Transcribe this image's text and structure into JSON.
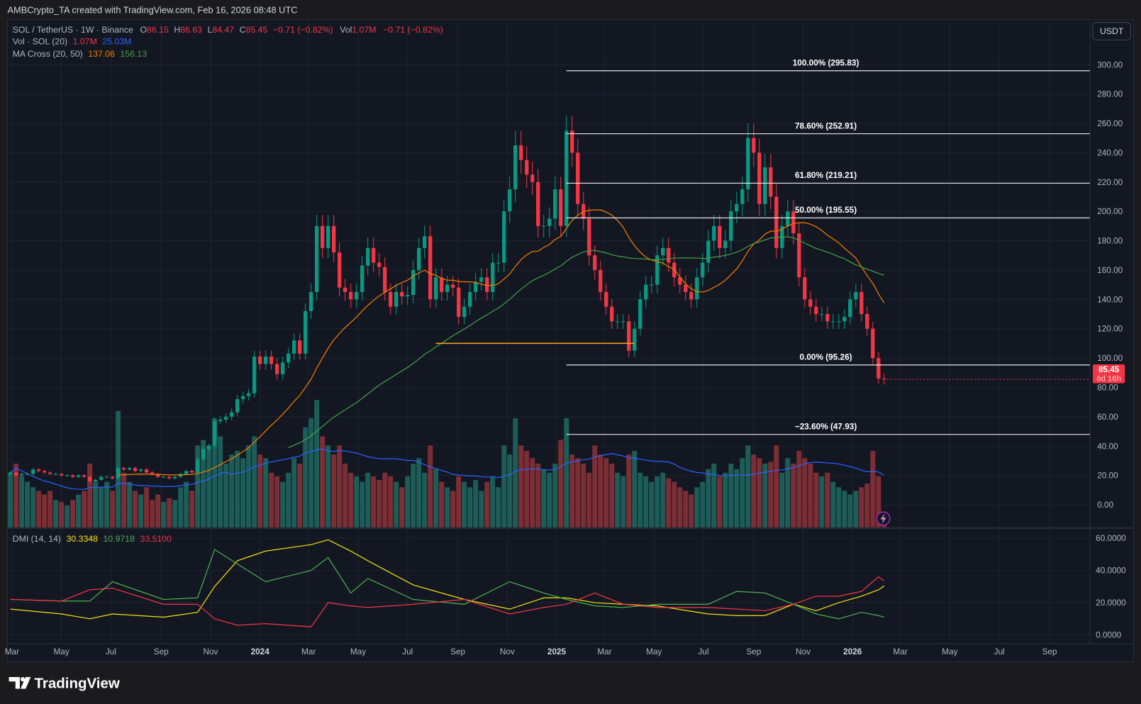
{
  "attribution": "AMBCrypto_TA created with TradingView.com, Feb 16, 2026 08:48 UTC",
  "footer_logo": "TradingView",
  "currency_button": "USDT",
  "legend": {
    "symbol": "SOL / TetherUS · 1W · Binance",
    "o_label": "O",
    "o": "86.15",
    "h_label": "H",
    "h": "86.63",
    "l_label": "L",
    "l": "84.47",
    "c_label": "C",
    "c": "85.45",
    "change": "−0.71 (−0.82%)",
    "vol_label": "Vol",
    "vol": "1.07M",
    "change2": "−0.71 (−0.82%)",
    "volume_name": "Vol · SOL (20)",
    "volume_value": "1.07M",
    "volume_ma": "25.03M",
    "ma_name": "MA Cross (20, 50)",
    "ma_fast": "137.06",
    "ma_slow": "156.13",
    "dmi_name": "DMI (14, 14)",
    "dmi_adx": "30.3348",
    "dmi_plus": "10.9718",
    "dmi_minus": "33.5100"
  },
  "last_price": {
    "value": "85.45",
    "countdown": "6d 16h"
  },
  "colors": {
    "up": "#089981",
    "down": "#f23645",
    "ma_fast": "#f57c00",
    "ma_slow": "#43a047",
    "vol_ma": "#2962ff",
    "adx": "#f4e012",
    "plus_di": "#4caf50",
    "minus_di": "#f23645",
    "support": "#f59d1b",
    "background": "#131722"
  },
  "chart_data": [
    {
      "type": "candlestick",
      "interval": "1W",
      "first_week": "2023-02-27",
      "closes": [
        22,
        20,
        21,
        21,
        24,
        23,
        22,
        21,
        21,
        20,
        20,
        19,
        20,
        19,
        16,
        17,
        19,
        19,
        18,
        25,
        24,
        25,
        23,
        24,
        22,
        21,
        19,
        19,
        18,
        19,
        21,
        23,
        22,
        31,
        38,
        40,
        57,
        58,
        60,
        63,
        72,
        74,
        76,
        101,
        96,
        101,
        96,
        89,
        97,
        103,
        112,
        103,
        132,
        145,
        190,
        175,
        190,
        172,
        148,
        145,
        140,
        145,
        163,
        175,
        165,
        162,
        145,
        135,
        145,
        142,
        143,
        160,
        175,
        183,
        140,
        155,
        145,
        150,
        148,
        128,
        135,
        145,
        152,
        155,
        145,
        165,
        165,
        200,
        215,
        245,
        235,
        225,
        220,
        190,
        190,
        195,
        215,
        190,
        255,
        240,
        205,
        195,
        170,
        160,
        145,
        135,
        125,
        125,
        125,
        105,
        120,
        140,
        150,
        150,
        170,
        175,
        165,
        155,
        150,
        145,
        140,
        155,
        165,
        180,
        190,
        175,
        180,
        200,
        205,
        215,
        250,
        240,
        205,
        230,
        210,
        175,
        190,
        200,
        185,
        155,
        140,
        135,
        130,
        130,
        125,
        125,
        125,
        128,
        140,
        145,
        130,
        120,
        100,
        86,
        85.45
      ],
      "first_open": 21,
      "volume_millions": [
        30,
        35,
        28,
        25,
        22,
        20,
        18,
        20,
        15,
        14,
        12,
        15,
        18,
        20,
        35,
        25,
        22,
        25,
        20,
        64,
        30,
        25,
        20,
        18,
        22,
        15,
        18,
        14,
        16,
        15,
        22,
        25,
        20,
        45,
        48,
        45,
        60,
        50,
        35,
        40,
        42,
        38,
        45,
        50,
        40,
        38,
        30,
        28,
        25,
        30,
        38,
        35,
        55,
        60,
        70,
        50,
        45,
        40,
        45,
        35,
        30,
        28,
        25,
        30,
        28,
        26,
        30,
        28,
        25,
        22,
        28,
        35,
        38,
        30,
        45,
        32,
        25,
        22,
        20,
        28,
        25,
        22,
        26,
        20,
        25,
        28,
        22,
        45,
        40,
        60,
        45,
        42,
        38,
        35,
        32,
        30,
        35,
        48,
        60,
        40,
        38,
        35,
        30,
        45,
        40,
        38,
        35,
        30,
        28,
        40,
        42,
        30,
        28,
        25,
        28,
        30,
        27,
        25,
        22,
        20,
        18,
        22,
        25,
        32,
        35,
        28,
        30,
        35,
        32,
        38,
        45,
        40,
        38,
        35,
        36,
        45,
        30,
        38,
        35,
        42,
        38,
        35,
        30,
        28,
        30,
        25,
        22,
        20,
        18,
        20,
        22,
        24,
        42,
        28,
        1.07
      ],
      "moving_averages": [
        20,
        50
      ],
      "price_axis": {
        "min": 0,
        "max": 300,
        "ticks": [
          "300.00",
          "280.00",
          "260.00",
          "240.00",
          "220.00",
          "200.00",
          "180.00",
          "160.00",
          "140.00",
          "120.00",
          "100.00",
          "80.00",
          "60.00",
          "40.00",
          "20.00",
          "0.00"
        ]
      },
      "fibonacci": [
        {
          "label": "100.00% (295.83)",
          "price": 295.83
        },
        {
          "label": "78.60% (252.91)",
          "price": 252.91
        },
        {
          "label": "61.80% (219.21)",
          "price": 219.21
        },
        {
          "label": "50.00% (195.55)",
          "price": 195.55
        },
        {
          "label": "0.00% (95.26)",
          "price": 95.26
        },
        {
          "label": "−23.60% (47.93)",
          "price": 47.93
        }
      ],
      "fib_start": "2025-01-13",
      "support_line": {
        "price": 110,
        "from": "2024-08-05",
        "to": "2025-04-07"
      }
    },
    {
      "type": "line",
      "name": "DMI (14, 14)",
      "y_axis": {
        "min": 0,
        "max": 60,
        "ticks": [
          "60.0000",
          "40.0000",
          "20.0000",
          "0.0000"
        ]
      },
      "dates": [
        "2023-02-27",
        "2023-05-01",
        "2023-06-05",
        "2023-07-03",
        "2023-09-04",
        "2023-10-16",
        "2023-11-06",
        "2023-12-04",
        "2024-01-08",
        "2024-03-04",
        "2024-03-25",
        "2024-04-22",
        "2024-05-13",
        "2024-07-08",
        "2024-09-09",
        "2024-11-04",
        "2024-12-16",
        "2025-01-13",
        "2025-02-17",
        "2025-03-24",
        "2025-05-05",
        "2025-07-07",
        "2025-08-11",
        "2025-09-15",
        "2025-10-20",
        "2025-11-17",
        "2025-12-15",
        "2026-01-12",
        "2026-02-02",
        "2026-02-09"
      ],
      "series": [
        {
          "name": "ADX",
          "values": [
            16,
            13,
            10,
            13,
            11,
            14,
            30,
            46,
            52,
            56,
            59,
            52,
            46,
            31,
            22,
            16,
            23,
            23,
            20,
            19,
            18,
            13,
            12,
            12,
            19,
            15,
            20,
            24,
            28,
            30.33
          ]
        },
        {
          "name": "+DI",
          "values": [
            22,
            21,
            21,
            33,
            22,
            23,
            53,
            44,
            33,
            40,
            48,
            26,
            35,
            22,
            19,
            33,
            26,
            22,
            18,
            17,
            19,
            19,
            27,
            26,
            19,
            13,
            10,
            14,
            12,
            10.97
          ]
        },
        {
          "name": "−DI",
          "values": [
            22,
            21,
            28,
            29,
            19,
            19,
            10,
            6,
            7,
            5,
            20,
            18,
            17,
            19,
            22,
            13,
            17,
            19,
            26,
            19,
            17,
            17,
            16,
            15,
            19,
            24,
            24,
            27,
            36,
            33.51
          ]
        }
      ]
    }
  ],
  "time_axis": [
    {
      "label": "Mar",
      "date": "2023-03-01"
    },
    {
      "label": "May",
      "date": "2023-05-01"
    },
    {
      "label": "Jul",
      "date": "2023-07-01"
    },
    {
      "label": "Sep",
      "date": "2023-09-01"
    },
    {
      "label": "Nov",
      "date": "2023-11-01"
    },
    {
      "label": "2024",
      "date": "2024-01-01"
    },
    {
      "label": "Mar",
      "date": "2024-03-01"
    },
    {
      "label": "May",
      "date": "2024-05-01"
    },
    {
      "label": "Jul",
      "date": "2024-07-01"
    },
    {
      "label": "Sep",
      "date": "2024-09-01"
    },
    {
      "label": "Nov",
      "date": "2024-11-01"
    },
    {
      "label": "2025",
      "date": "2025-01-01"
    },
    {
      "label": "Mar",
      "date": "2025-03-01"
    },
    {
      "label": "May",
      "date": "2025-05-01"
    },
    {
      "label": "Jul",
      "date": "2025-07-01"
    },
    {
      "label": "Sep",
      "date": "2025-09-01"
    },
    {
      "label": "Nov",
      "date": "2025-11-01"
    },
    {
      "label": "2026",
      "date": "2026-01-01"
    },
    {
      "label": "Mar",
      "date": "2026-03-01"
    },
    {
      "label": "May",
      "date": "2026-05-01"
    },
    {
      "label": "Jul",
      "date": "2026-07-01"
    },
    {
      "label": "Sep",
      "date": "2026-09-01"
    }
  ]
}
